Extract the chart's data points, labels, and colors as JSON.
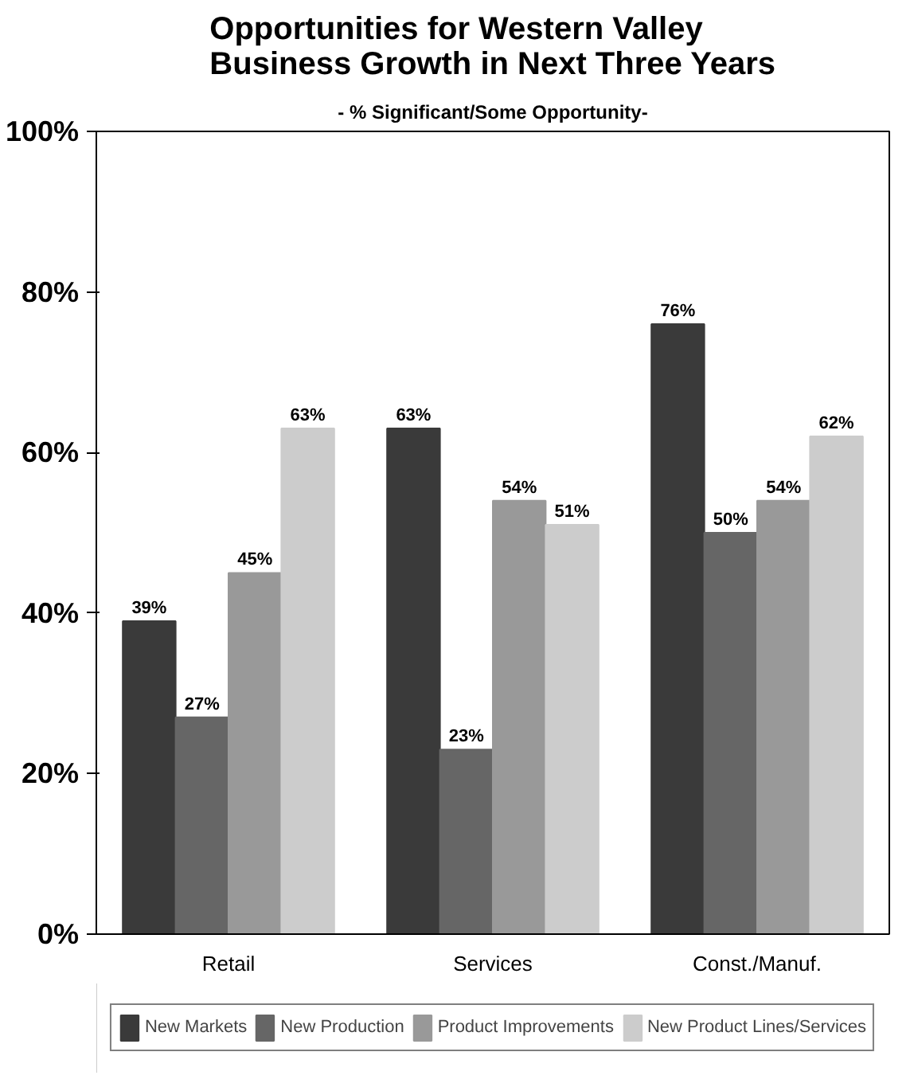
{
  "chart_data": {
    "type": "bar",
    "title": "Opportunities for Western Valley\nBusiness Growth in Next Three Years",
    "subtitle": "- % Significant/Some Opportunity-",
    "categories": [
      "Retail",
      "Services",
      "Const./Manuf."
    ],
    "series": [
      {
        "name": "New Markets",
        "color": "#3a3a3a",
        "values": [
          39,
          63,
          76
        ],
        "value_labels": [
          "39%",
          "63%",
          "76%"
        ]
      },
      {
        "name": "New Production",
        "color": "#666666",
        "values": [
          27,
          23,
          50
        ],
        "value_labels": [
          "27%",
          "23%",
          "50%"
        ]
      },
      {
        "name": "Product Improvements",
        "color": "#999999",
        "values": [
          45,
          54,
          54
        ],
        "value_labels": [
          "45%",
          "54%",
          "54%"
        ]
      },
      {
        "name": "New Product Lines/Services",
        "color": "#cccccc",
        "values": [
          63,
          51,
          62
        ],
        "value_labels": [
          "63%",
          "51%",
          "62%"
        ]
      }
    ],
    "ylim": [
      0,
      100
    ],
    "yticks": [
      {
        "value": 0,
        "label": "0%"
      },
      {
        "value": 20,
        "label": "20%"
      },
      {
        "value": 40,
        "label": "40%"
      },
      {
        "value": 60,
        "label": "60%"
      },
      {
        "value": 80,
        "label": "80%"
      },
      {
        "value": 100,
        "label": "100%"
      }
    ],
    "legend": "bottom",
    "grid": false
  }
}
